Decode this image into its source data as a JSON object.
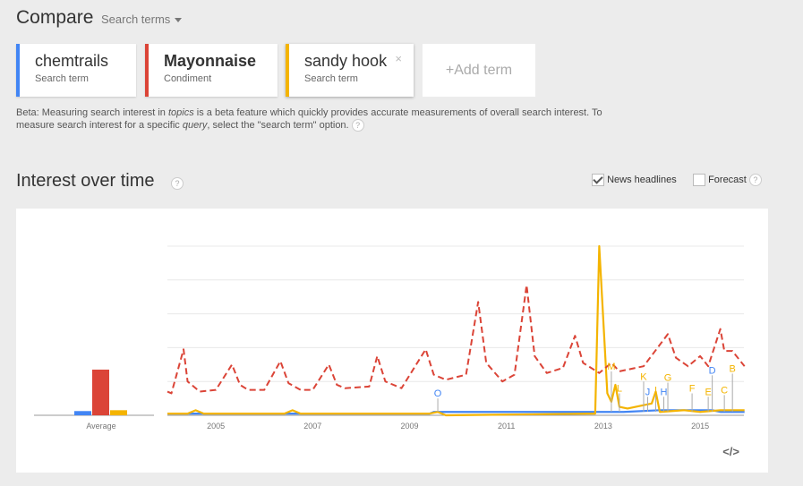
{
  "header": {
    "title": "Compare",
    "search_type": "Search terms"
  },
  "terms": [
    {
      "name": "chemtrails",
      "sub": "Search term",
      "color": "#4285f4"
    },
    {
      "name": "Mayonnaise",
      "sub": "Condiment",
      "color": "#db4437"
    },
    {
      "name": "sandy hook",
      "sub": "Search term",
      "color": "#f4b400",
      "close": "×"
    }
  ],
  "add_term": "+Add term",
  "beta_note": {
    "p1": "Beta: Measuring search interest in ",
    "em1": "topics",
    "p2": " is a beta feature which quickly provides accurate measurements of overall search interest. To measure search interest for a specific ",
    "em2": "query",
    "p3": ", select the \"search term\" option."
  },
  "section": {
    "title": "Interest over time",
    "help": "?"
  },
  "options": {
    "news_headlines": "News headlines",
    "news_checked": true,
    "forecast": "Forecast",
    "forecast_checked": false,
    "help": "?"
  },
  "embed": "</>",
  "chart_data": {
    "type": "line",
    "ylim": [
      0,
      100
    ],
    "grid": true,
    "x_ticks": [
      "2005",
      "2007",
      "2009",
      "2011",
      "2013",
      "2015"
    ],
    "average": {
      "label": "Average",
      "values": [
        {
          "term": "chemtrails",
          "value": 2.5
        },
        {
          "term": "Mayonnaise",
          "value": 27
        },
        {
          "term": "sandy hook",
          "value": 3
        }
      ]
    },
    "series": [
      {
        "name": "chemtrails",
        "color": "#4285f4",
        "style": "solid",
        "points": [
          [
            "2004-01",
            1
          ],
          [
            "2009-06",
            1
          ],
          [
            "2009-07",
            2
          ],
          [
            "2010-02",
            2
          ],
          [
            "2011-06",
            2
          ],
          [
            "2012-06",
            2
          ],
          [
            "2013-06",
            2
          ],
          [
            "2014-03",
            3
          ],
          [
            "2014-09",
            3
          ],
          [
            "2015-04",
            3
          ],
          [
            "2015-06",
            2
          ],
          [
            "2015-12",
            2
          ]
        ]
      },
      {
        "name": "Mayonnaise",
        "color": "#db4437",
        "style": "dashed",
        "points": [
          [
            "2004-01",
            14
          ],
          [
            "2004-02",
            13
          ],
          [
            "2004-05",
            39
          ],
          [
            "2004-06",
            20
          ],
          [
            "2004-09",
            14
          ],
          [
            "2005-01",
            15
          ],
          [
            "2005-05",
            30
          ],
          [
            "2005-07",
            18
          ],
          [
            "2005-09",
            15
          ],
          [
            "2006-01",
            15
          ],
          [
            "2006-05",
            32
          ],
          [
            "2006-07",
            19
          ],
          [
            "2006-10",
            15
          ],
          [
            "2007-01",
            15
          ],
          [
            "2007-05",
            30
          ],
          [
            "2007-07",
            18
          ],
          [
            "2007-09",
            16
          ],
          [
            "2008-03",
            17
          ],
          [
            "2008-05",
            35
          ],
          [
            "2008-07",
            20
          ],
          [
            "2008-11",
            16
          ],
          [
            "2009-05",
            39
          ],
          [
            "2009-07",
            24
          ],
          [
            "2009-10",
            21
          ],
          [
            "2010-03",
            24
          ],
          [
            "2010-06",
            67
          ],
          [
            "2010-08",
            31
          ],
          [
            "2010-12",
            20
          ],
          [
            "2011-03",
            24
          ],
          [
            "2011-06",
            77
          ],
          [
            "2011-08",
            35
          ],
          [
            "2011-11",
            25
          ],
          [
            "2012-03",
            28
          ],
          [
            "2012-06",
            47
          ],
          [
            "2012-08",
            31
          ],
          [
            "2012-12",
            25
          ],
          [
            "2013-03",
            31
          ],
          [
            "2013-05",
            26
          ],
          [
            "2013-11",
            29
          ],
          [
            "2014-05",
            48
          ],
          [
            "2014-07",
            34
          ],
          [
            "2014-10",
            29
          ],
          [
            "2015-01",
            35
          ],
          [
            "2015-03",
            29
          ],
          [
            "2015-06",
            51
          ],
          [
            "2015-07",
            38
          ],
          [
            "2015-09",
            38
          ],
          [
            "2015-12",
            29
          ]
        ]
      },
      {
        "name": "sandy hook",
        "color": "#f4b400",
        "style": "solid",
        "points": [
          [
            "2004-01",
            1
          ],
          [
            "2004-06",
            1
          ],
          [
            "2004-08",
            3
          ],
          [
            "2004-10",
            1
          ],
          [
            "2006-06",
            1
          ],
          [
            "2006-08",
            3
          ],
          [
            "2006-10",
            1
          ],
          [
            "2009-06",
            1
          ],
          [
            "2009-08",
            2
          ],
          [
            "2009-10",
            0
          ],
          [
            "2012-11",
            1
          ],
          [
            "2012-12",
            100
          ],
          [
            "2013-02",
            13
          ],
          [
            "2013-03",
            8
          ],
          [
            "2013-04",
            18
          ],
          [
            "2013-05",
            5
          ],
          [
            "2013-07",
            4
          ],
          [
            "2014-01",
            7
          ],
          [
            "2014-02",
            14
          ],
          [
            "2014-03",
            2
          ],
          [
            "2014-09",
            3
          ],
          [
            "2015-01",
            2
          ],
          [
            "2015-06",
            3
          ],
          [
            "2015-12",
            3
          ]
        ]
      }
    ],
    "annotations": [
      {
        "letter": "O",
        "date": "2009-08",
        "color": "#4285f4",
        "level": 11
      },
      {
        "letter": "M",
        "date": "2013-03",
        "color": "#f4b400",
        "level": 27
      },
      {
        "letter": "L",
        "date": "2013-05",
        "color": "#f4b400",
        "level": 14
      },
      {
        "letter": "K",
        "date": "2013-11",
        "color": "#f4b400",
        "level": 21
      },
      {
        "letter": "J",
        "date": "2013-12",
        "color": "#4285f4",
        "level": 12
      },
      {
        "letter": "I",
        "date": "2014-02",
        "color": "#f4b400",
        "level": 13
      },
      {
        "letter": "H",
        "date": "2014-04",
        "color": "#4285f4",
        "level": 12
      },
      {
        "letter": "G",
        "date": "2014-05",
        "color": "#f4b400",
        "level": 14
      },
      {
        "letter": "F",
        "date": "2014-11",
        "color": "#f4b400",
        "level": 14
      },
      {
        "letter": "E",
        "date": "2015-03",
        "color": "#f4b400",
        "level": 12
      },
      {
        "letter": "D",
        "date": "2015-04",
        "color": "#4285f4",
        "level": 12
      },
      {
        "letter": "C",
        "date": "2015-07",
        "color": "#f4b400",
        "level": 13
      },
      {
        "letter": "B",
        "date": "2015-09",
        "color": "#f4b400",
        "level": 13
      }
    ]
  }
}
